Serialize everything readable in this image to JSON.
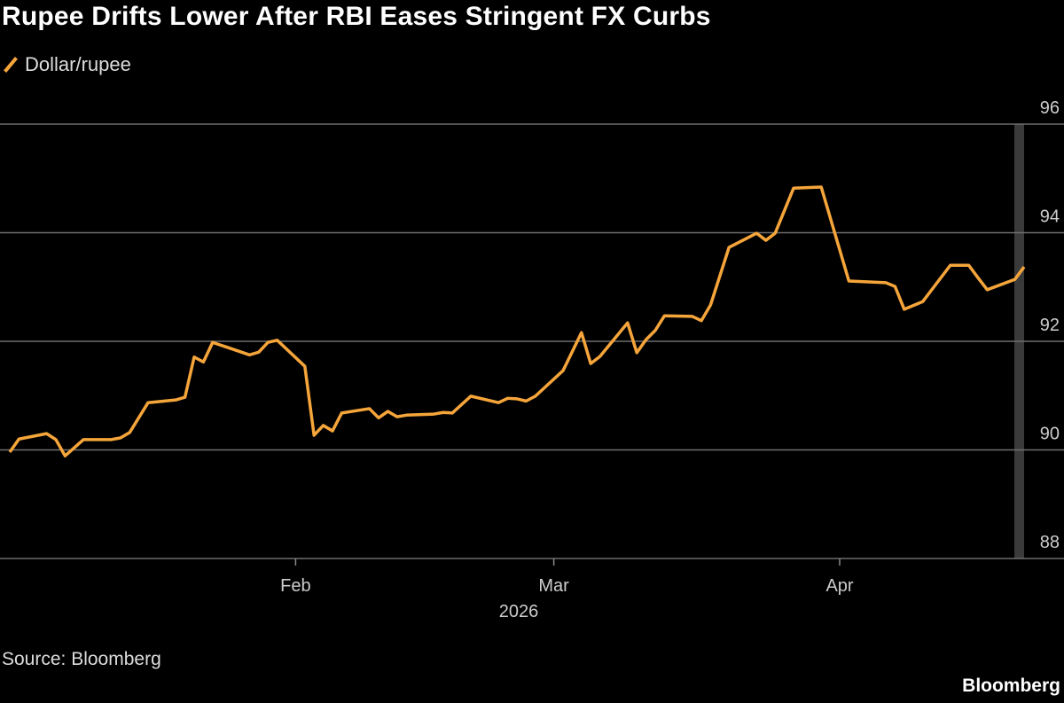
{
  "chart_data": {
    "type": "line",
    "title": "Rupee Drifts Lower After RBI Eases Stringent FX Curbs",
    "source": "Source: Bloomberg",
    "brand": "Bloomberg",
    "ylim": [
      88,
      96
    ],
    "y_ticks": [
      "88",
      "90",
      "92",
      "94",
      "96"
    ],
    "x_ticks": [
      {
        "date": "2026-02-01",
        "label": "Feb"
      },
      {
        "date": "2026-03-01",
        "label": "Mar"
      },
      {
        "date": "2026-04-01",
        "label": "Apr"
      }
    ],
    "x_year_label": "2026",
    "y_axis_position": "right",
    "grid": "horizontal",
    "legend_placement": "top-left",
    "highlight": "latest date",
    "series": [
      {
        "name": "Dollar/rupee",
        "color": "#f5a53a",
        "points": [
          [
            "2026-01-01",
            89.96
          ],
          [
            "2026-01-02",
            90.2
          ],
          [
            "2026-01-05",
            90.3
          ],
          [
            "2026-01-06",
            90.19
          ],
          [
            "2026-01-07",
            89.89
          ],
          [
            "2026-01-09",
            90.19
          ],
          [
            "2026-01-12",
            90.19
          ],
          [
            "2026-01-13",
            90.22
          ],
          [
            "2026-01-14",
            90.32
          ],
          [
            "2026-01-16",
            90.87
          ],
          [
            "2026-01-19",
            90.92
          ],
          [
            "2026-01-20",
            90.97
          ],
          [
            "2026-01-21",
            91.71
          ],
          [
            "2026-01-22",
            91.62
          ],
          [
            "2026-01-23",
            91.98
          ],
          [
            "2026-01-27",
            91.75
          ],
          [
            "2026-01-28",
            91.8
          ],
          [
            "2026-01-29",
            91.98
          ],
          [
            "2026-01-30",
            92.02
          ],
          [
            "2026-02-02",
            91.54
          ],
          [
            "2026-02-03",
            90.27
          ],
          [
            "2026-02-04",
            90.45
          ],
          [
            "2026-02-05",
            90.35
          ],
          [
            "2026-02-06",
            90.68
          ],
          [
            "2026-02-09",
            90.76
          ],
          [
            "2026-02-10",
            90.59
          ],
          [
            "2026-02-11",
            90.71
          ],
          [
            "2026-02-12",
            90.61
          ],
          [
            "2026-02-13",
            90.64
          ],
          [
            "2026-02-16",
            90.66
          ],
          [
            "2026-02-17",
            90.69
          ],
          [
            "2026-02-18",
            90.68
          ],
          [
            "2026-02-20",
            90.99
          ],
          [
            "2026-02-23",
            90.87
          ],
          [
            "2026-02-24",
            90.95
          ],
          [
            "2026-02-25",
            90.94
          ],
          [
            "2026-02-26",
            90.9
          ],
          [
            "2026-02-27",
            90.99
          ],
          [
            "2026-03-02",
            91.46
          ],
          [
            "2026-03-04",
            92.16
          ],
          [
            "2026-03-05",
            91.59
          ],
          [
            "2026-03-06",
            91.72
          ],
          [
            "2026-03-09",
            92.34
          ],
          [
            "2026-03-10",
            91.79
          ],
          [
            "2026-03-11",
            92.03
          ],
          [
            "2026-03-12",
            92.2
          ],
          [
            "2026-03-13",
            92.47
          ],
          [
            "2026-03-16",
            92.46
          ],
          [
            "2026-03-17",
            92.38
          ],
          [
            "2026-03-18",
            92.67
          ],
          [
            "2026-03-20",
            93.73
          ],
          [
            "2026-03-23",
            93.99
          ],
          [
            "2026-03-24",
            93.86
          ],
          [
            "2026-03-25",
            93.99
          ],
          [
            "2026-03-27",
            94.82
          ],
          [
            "2026-03-30",
            94.84
          ],
          [
            "2026-04-02",
            93.11
          ],
          [
            "2026-04-06",
            93.08
          ],
          [
            "2026-04-07",
            93.01
          ],
          [
            "2026-04-08",
            92.59
          ],
          [
            "2026-04-10",
            92.73
          ],
          [
            "2026-04-13",
            93.4
          ],
          [
            "2026-04-15",
            93.4
          ],
          [
            "2026-04-16",
            93.17
          ],
          [
            "2026-04-17",
            92.95
          ],
          [
            "2026-04-20",
            93.14
          ],
          [
            "2026-04-21",
            93.37
          ]
        ]
      }
    ]
  }
}
